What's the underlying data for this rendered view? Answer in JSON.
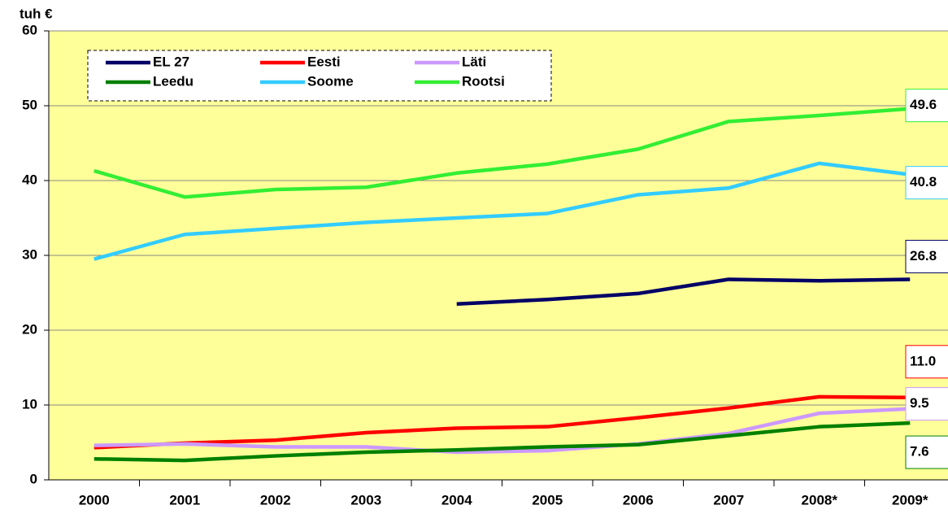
{
  "chart_data": {
    "type": "line",
    "y_label": "tuh €",
    "categories": [
      "2000",
      "2001",
      "2002",
      "2003",
      "2004",
      "2005",
      "2006",
      "2007",
      "2008*",
      "2009*"
    ],
    "ylim": [
      0,
      60
    ],
    "yticks": [
      0,
      10,
      20,
      30,
      40,
      50,
      60
    ],
    "grid": true,
    "legend": "top-left",
    "series": [
      {
        "name": "EL 27",
        "color": "#000066",
        "values": [
          null,
          null,
          null,
          null,
          23.5,
          24.1,
          24.9,
          26.8,
          26.6,
          26.8
        ],
        "value_labels": [
          null,
          null,
          null,
          null,
          null,
          null,
          null,
          null,
          null,
          "26.8"
        ]
      },
      {
        "name": "Eesti",
        "color": "#ff0000",
        "values": [
          4.3,
          4.9,
          5.3,
          6.3,
          6.9,
          7.1,
          8.3,
          9.6,
          11.1,
          11.0
        ],
        "value_labels": [
          null,
          null,
          null,
          null,
          null,
          null,
          null,
          null,
          null,
          "11.0"
        ]
      },
      {
        "name": "Läti",
        "color": "#cc99ff",
        "values": [
          4.6,
          4.8,
          4.4,
          4.4,
          3.7,
          3.9,
          4.8,
          6.2,
          8.9,
          9.5
        ],
        "value_labels": [
          null,
          null,
          null,
          null,
          null,
          null,
          null,
          null,
          null,
          "9.5"
        ]
      },
      {
        "name": "Leedu",
        "color": "#008000",
        "values": [
          2.8,
          2.6,
          3.2,
          3.7,
          4.0,
          4.4,
          4.7,
          5.9,
          7.1,
          7.6
        ],
        "value_labels": [
          null,
          null,
          null,
          null,
          null,
          null,
          null,
          null,
          null,
          "7.6"
        ]
      },
      {
        "name": "Soome",
        "color": "#33ccff",
        "values": [
          29.5,
          32.8,
          33.6,
          34.4,
          35.0,
          35.6,
          38.1,
          39.0,
          42.3,
          40.8
        ],
        "value_labels": [
          null,
          null,
          null,
          null,
          null,
          null,
          null,
          null,
          null,
          "40.8"
        ]
      },
      {
        "name": "Rootsi",
        "color": "#33ee33",
        "values": [
          41.3,
          37.8,
          38.8,
          39.1,
          41.0,
          42.2,
          44.2,
          47.9,
          48.7,
          49.6
        ],
        "value_labels": [
          null,
          null,
          null,
          null,
          null,
          null,
          null,
          null,
          null,
          "49.6"
        ]
      }
    ]
  }
}
